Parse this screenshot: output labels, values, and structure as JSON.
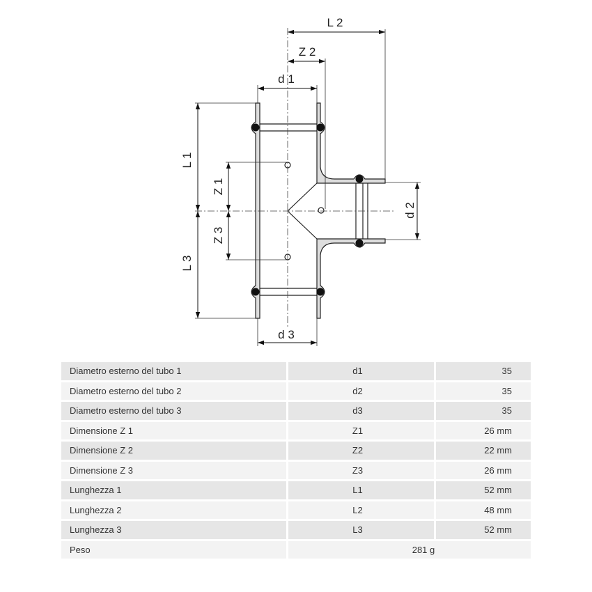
{
  "drawing": {
    "labels": {
      "L2": "L 2",
      "Z2": "Z 2",
      "d1": "d 1",
      "L1": "L 1",
      "Z1": "Z 1",
      "Z3": "Z 3",
      "L3": "L 3",
      "d2": "d 2",
      "d3": "d 3"
    }
  },
  "table": {
    "rows": [
      {
        "name": "Diametro esterno del tubo 1",
        "symbol": "d1",
        "value": "35"
      },
      {
        "name": "Diametro esterno del tubo 2",
        "symbol": "d2",
        "value": "35"
      },
      {
        "name": "Diametro esterno del tubo 3",
        "symbol": "d3",
        "value": "35"
      },
      {
        "name": "Dimensione Z 1",
        "symbol": "Z1",
        "value": "26 mm"
      },
      {
        "name": "Dimensione Z 2",
        "symbol": "Z2",
        "value": "22 mm"
      },
      {
        "name": "Dimensione Z 3",
        "symbol": "Z3",
        "value": "26 mm"
      },
      {
        "name": "Lunghezza 1",
        "symbol": "L1",
        "value": "52 mm"
      },
      {
        "name": "Lunghezza 2",
        "symbol": "L2",
        "value": "48 mm"
      },
      {
        "name": "Lunghezza 3",
        "symbol": "L3",
        "value": "52 mm"
      }
    ],
    "weight": {
      "name": "Peso",
      "value": "281 g"
    }
  }
}
